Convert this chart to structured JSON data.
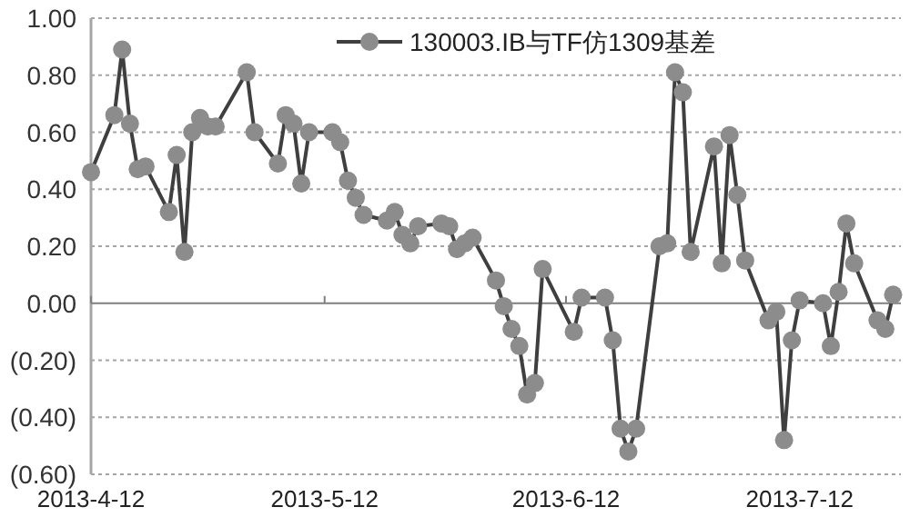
{
  "chart_data": {
    "type": "line",
    "x": [
      "2013-04-12",
      "2013-04-15",
      "2013-04-16",
      "2013-04-17",
      "2013-04-18",
      "2013-04-19",
      "2013-04-22",
      "2013-04-23",
      "2013-04-24",
      "2013-04-25",
      "2013-04-26",
      "2013-04-27",
      "2013-04-28",
      "2013-05-02",
      "2013-05-03",
      "2013-05-06",
      "2013-05-07",
      "2013-05-08",
      "2013-05-09",
      "2013-05-10",
      "2013-05-13",
      "2013-05-14",
      "2013-05-15",
      "2013-05-16",
      "2013-05-17",
      "2013-05-20",
      "2013-05-21",
      "2013-05-22",
      "2013-05-23",
      "2013-05-24",
      "2013-05-27",
      "2013-05-28",
      "2013-05-29",
      "2013-05-30",
      "2013-05-31",
      "2013-06-03",
      "2013-06-04",
      "2013-06-05",
      "2013-06-06",
      "2013-06-07",
      "2013-06-08",
      "2013-06-09",
      "2013-06-13",
      "2013-06-14",
      "2013-06-17",
      "2013-06-18",
      "2013-06-19",
      "2013-06-20",
      "2013-06-21",
      "2013-06-24",
      "2013-06-25",
      "2013-06-26",
      "2013-06-27",
      "2013-06-28",
      "2013-07-01",
      "2013-07-02",
      "2013-07-03",
      "2013-07-04",
      "2013-07-05",
      "2013-07-08",
      "2013-07-09",
      "2013-07-10",
      "2013-07-11",
      "2013-07-12",
      "2013-07-15",
      "2013-07-16",
      "2013-07-17",
      "2013-07-18",
      "2013-07-19",
      "2013-07-22",
      "2013-07-23",
      "2013-07-24"
    ],
    "series": [
      {
        "name": "130003.IB与TF仿1309基差",
        "color": "#8c8c8c",
        "values": [
          0.46,
          0.66,
          0.89,
          0.63,
          0.47,
          0.48,
          0.32,
          0.52,
          0.18,
          0.6,
          0.65,
          0.62,
          0.62,
          0.81,
          0.6,
          0.49,
          0.66,
          0.63,
          0.42,
          0.6,
          0.6,
          0.565,
          0.43,
          0.37,
          0.31,
          0.29,
          0.32,
          0.24,
          0.21,
          0.27,
          0.28,
          0.27,
          0.19,
          0.21,
          0.23,
          0.08,
          -0.01,
          -0.09,
          -0.15,
          -0.32,
          -0.28,
          0.12,
          -0.1,
          0.02,
          0.02,
          -0.13,
          -0.44,
          -0.52,
          -0.44,
          0.2,
          0.21,
          0.81,
          0.74,
          0.18,
          0.55,
          0.14,
          0.59,
          0.38,
          0.15,
          -0.06,
          -0.03,
          -0.48,
          -0.13,
          0.01,
          0.0,
          -0.15,
          0.04,
          0.28,
          0.14,
          -0.06,
          -0.09,
          0.03
        ]
      }
    ],
    "xlim": [
      "2013-04-12",
      "2013-07-25"
    ],
    "xticks": [
      {
        "value": "2013-04-12",
        "label": "2013-4-12"
      },
      {
        "value": "2013-05-12",
        "label": "2013-5-12"
      },
      {
        "value": "2013-06-12",
        "label": "2013-6-12"
      },
      {
        "value": "2013-07-12",
        "label": "2013-7-12"
      }
    ],
    "ylim": [
      -0.6,
      1.0
    ],
    "yticks": [
      {
        "value": -0.6,
        "label": "(0.60)"
      },
      {
        "value": -0.4,
        "label": "(0.40)"
      },
      {
        "value": -0.2,
        "label": "(0.20)"
      },
      {
        "value": 0,
        "label": "0.00"
      },
      {
        "value": 0.2,
        "label": "0.20"
      },
      {
        "value": 0.4,
        "label": "0.40"
      },
      {
        "value": 0.6,
        "label": "0.60"
      },
      {
        "value": 0.8,
        "label": "0.80"
      },
      {
        "value": 1.0,
        "label": "1.00"
      }
    ],
    "grid": "y",
    "legend": "top",
    "marker": "circle",
    "line_style": "solid"
  }
}
